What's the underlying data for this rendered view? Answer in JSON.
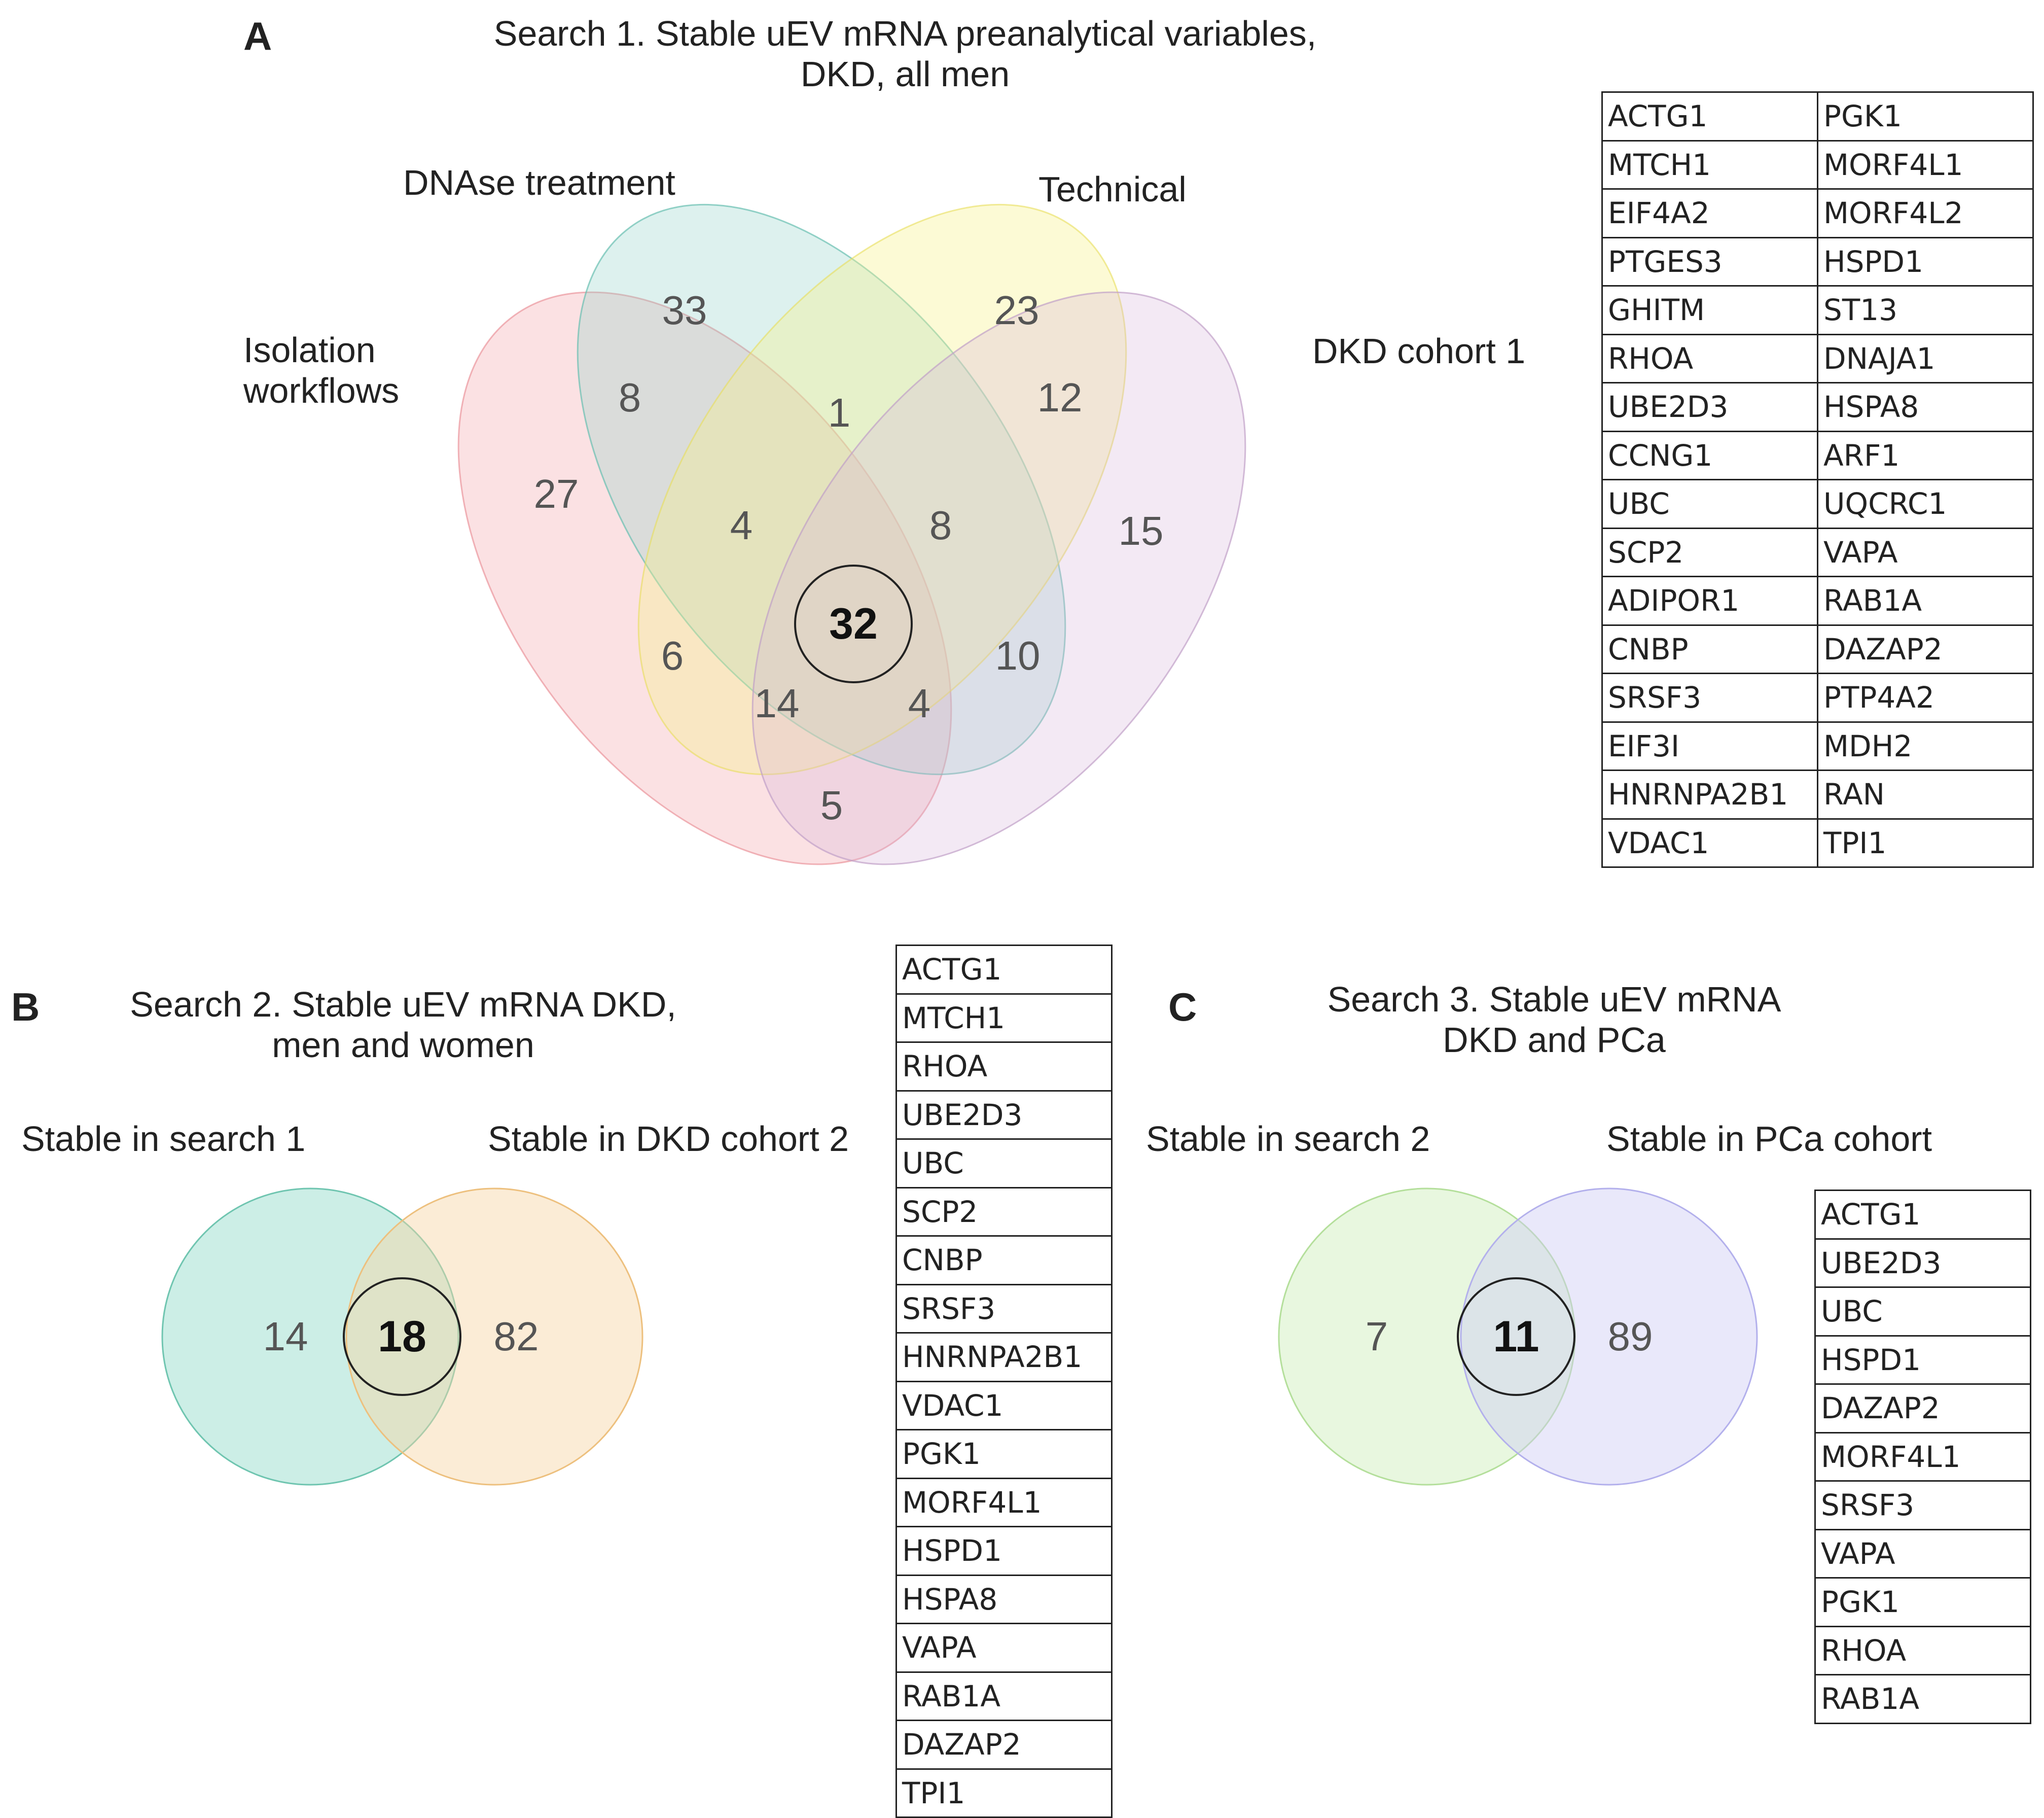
{
  "colors": {
    "isolation": "#F4A3A8",
    "dnase": "#8ED1C6",
    "technical": "#F8F08A",
    "dkd1": "#D6B7DC",
    "search1_circle": "#8FD9C8",
    "dkd2_circle": "#F6D5A3",
    "search2_circle": "#CDEDB8",
    "pca_circle": "#CFCDF5"
  },
  "panel_a": {
    "letter": "A",
    "title_line1": "Search 1. Stable uEV mRNA preanalytical variables,",
    "title_line2": "DKD, all men",
    "sets": {
      "isolation_line1": "Isolation",
      "isolation_line2": "workflows",
      "dnase": "DNAse treatment",
      "technical": "Technical",
      "dkd1": "DKD cohort 1"
    },
    "counts": {
      "isolation_only": "27",
      "dnase_only": "33",
      "technical_only": "23",
      "dkd1_only": "15",
      "isolation_dnase": "8",
      "dnase_technical": "1",
      "technical_dkd1": "12",
      "isolation_dnase_technical": "4",
      "dnase_technical_dkd1": "8",
      "all_four": "32",
      "isolation_technical": "6",
      "dnase_dkd1": "10",
      "isolation_technical_dkd1": "14",
      "isolation_dnase_dkd1": "4",
      "isolation_dkd1": "5"
    },
    "table": [
      [
        "ACTG1",
        "PGK1"
      ],
      [
        "MTCH1",
        "MORF4L1"
      ],
      [
        "EIF4A2",
        "MORF4L2"
      ],
      [
        "PTGES3",
        "HSPD1"
      ],
      [
        "GHITM",
        "ST13"
      ],
      [
        "RHOA",
        "DNAJA1"
      ],
      [
        "UBE2D3",
        "HSPA8"
      ],
      [
        "CCNG1",
        "ARF1"
      ],
      [
        "UBC",
        "UQCRC1"
      ],
      [
        "SCP2",
        "VAPA"
      ],
      [
        "ADIPOR1",
        "RAB1A"
      ],
      [
        "CNBP",
        "DAZAP2"
      ],
      [
        "SRSF3",
        "PTP4A2"
      ],
      [
        "EIF3I",
        "MDH2"
      ],
      [
        "HNRNPA2B1",
        "RAN"
      ],
      [
        "VDAC1",
        "TPI1"
      ]
    ]
  },
  "panel_b": {
    "letter": "B",
    "title_line1": "Search 2. Stable uEV mRNA DKD,",
    "title_line2": "men and women",
    "left_label": "Stable in search 1",
    "right_label": "Stable in DKD cohort 2",
    "left_only": "14",
    "overlap": "18",
    "right_only": "82",
    "table": [
      "ACTG1",
      "MTCH1",
      "RHOA",
      "UBE2D3",
      "UBC",
      "SCP2",
      "CNBP",
      "SRSF3",
      "HNRNPA2B1",
      "VDAC1",
      "PGK1",
      "MORF4L1",
      "HSPD1",
      "HSPA8",
      "VAPA",
      "RAB1A",
      "DAZAP2",
      "TPI1"
    ]
  },
  "panel_c": {
    "letter": "C",
    "title_line1": "Search 3. Stable uEV mRNA",
    "title_line2": "DKD and PCa",
    "left_label": "Stable in search 2",
    "right_label": "Stable in PCa cohort",
    "left_only": "7",
    "overlap": "11",
    "right_only": "89",
    "table": [
      "ACTG1",
      "UBE2D3",
      "UBC",
      "HSPD1",
      "DAZAP2",
      "MORF4L1",
      "SRSF3",
      "VAPA",
      "PGK1",
      "RHOA",
      "RAB1A"
    ]
  }
}
